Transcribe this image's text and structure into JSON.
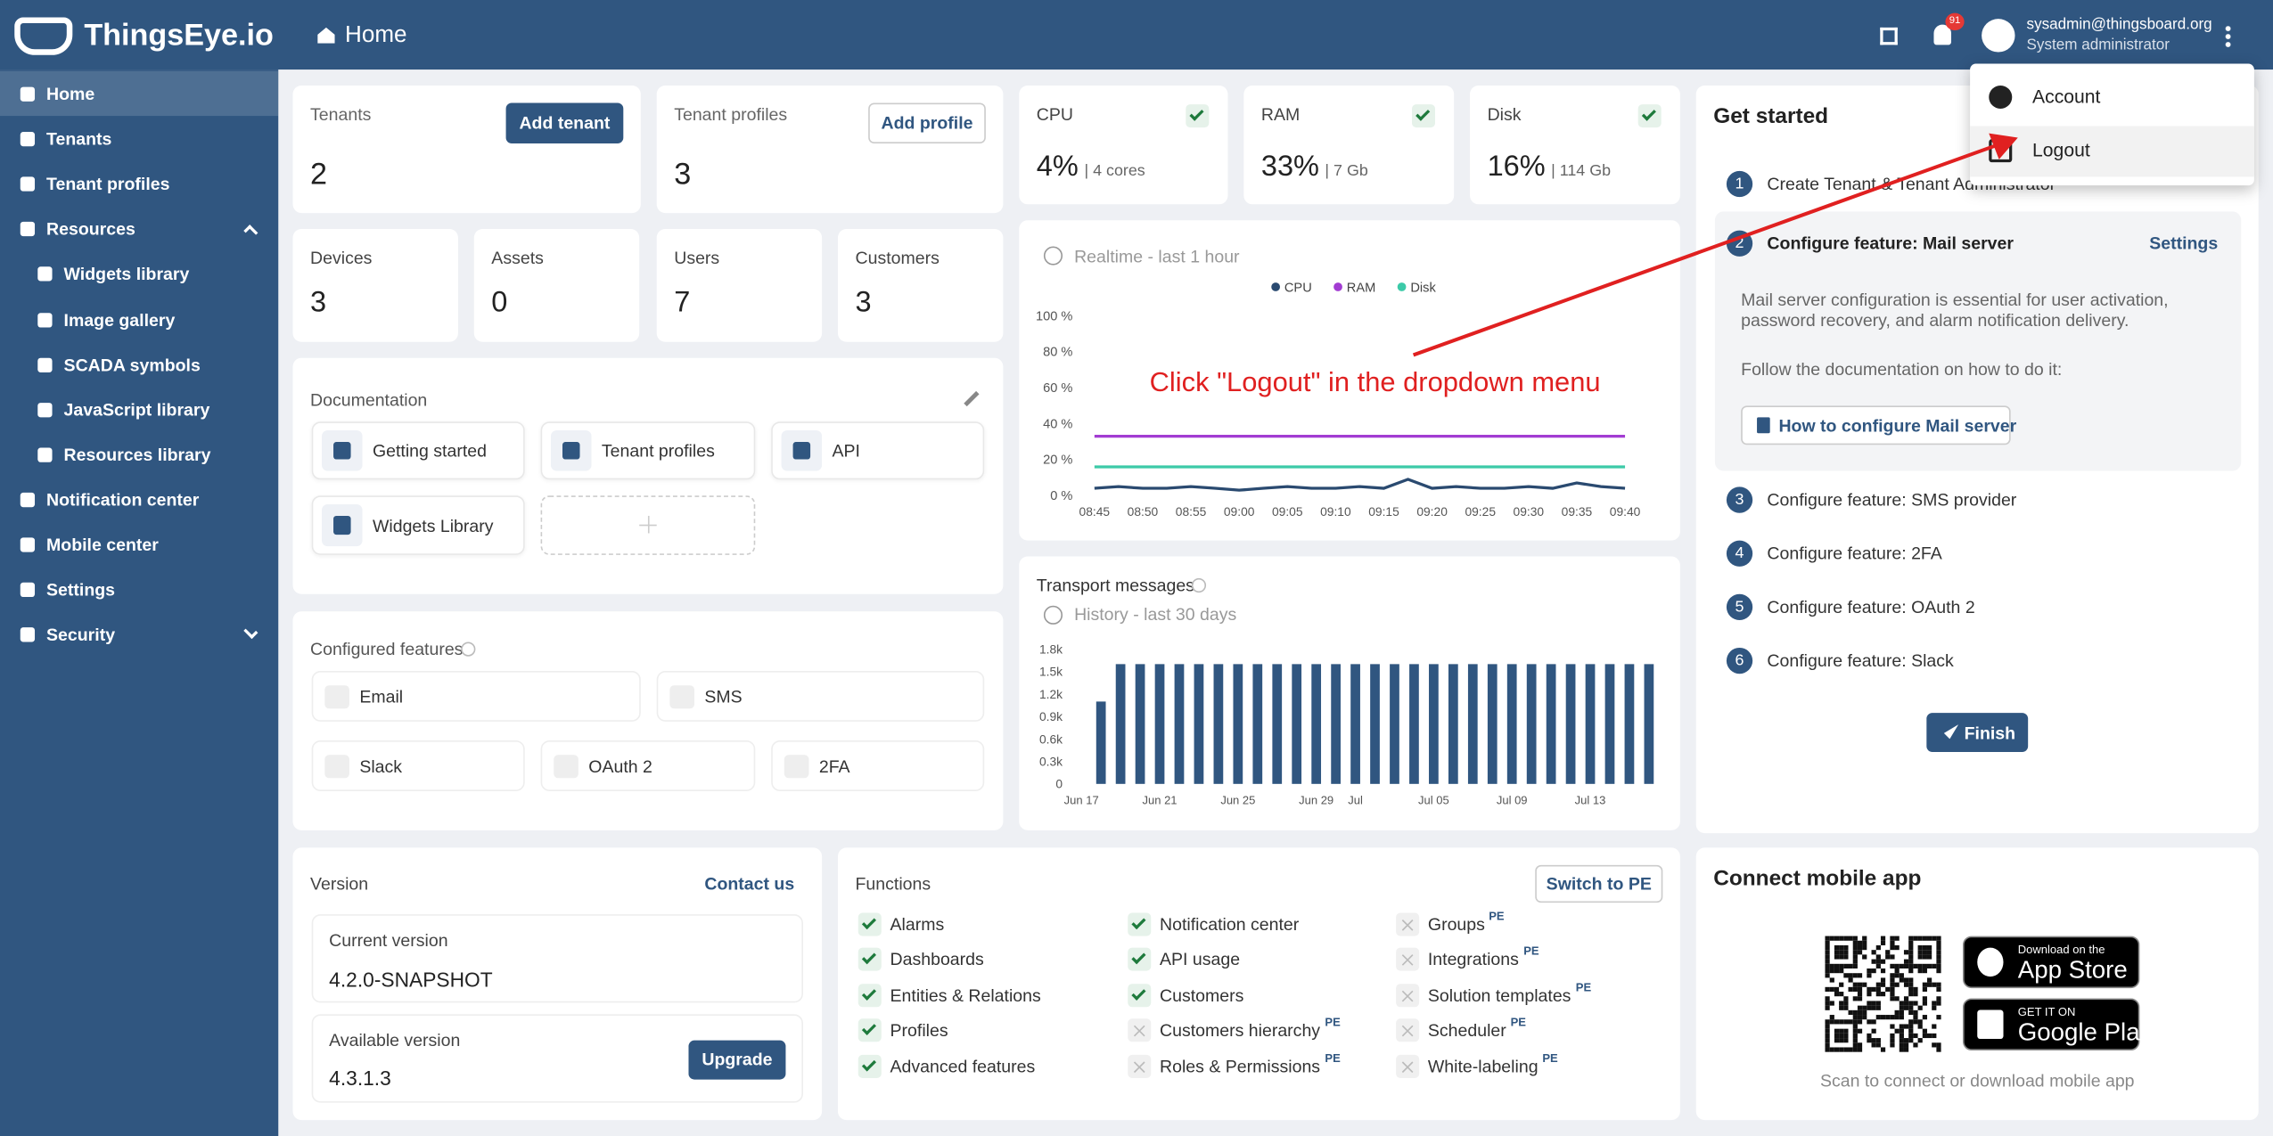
{
  "header": {
    "logo": "ThingsEye.io",
    "page": "Home",
    "notification_count": "91",
    "user_email": "sysadmin@thingsboard.org",
    "user_role": "System administrator"
  },
  "sidebar": {
    "items": [
      {
        "label": "Home"
      },
      {
        "label": "Tenants"
      },
      {
        "label": "Tenant profiles"
      },
      {
        "label": "Resources",
        "expanded": true,
        "children": [
          "Widgets library",
          "Image gallery",
          "SCADA symbols",
          "JavaScript library",
          "Resources library"
        ]
      },
      {
        "label": "Notification center"
      },
      {
        "label": "Mobile center"
      },
      {
        "label": "Settings"
      },
      {
        "label": "Security",
        "expanded": false
      }
    ]
  },
  "dropdown": {
    "items": [
      "Account",
      "Logout"
    ]
  },
  "annotation": "Click \"Logout\" in the dropdown menu",
  "tenants": {
    "label": "Tenants",
    "button": "Add tenant",
    "value": 2
  },
  "tenant_profiles": {
    "label": "Tenant profiles",
    "button": "Add profile",
    "value": 3
  },
  "counts": [
    {
      "label": "Devices",
      "value": 3
    },
    {
      "label": "Assets",
      "value": 0
    },
    {
      "label": "Users",
      "value": 7
    },
    {
      "label": "Customers",
      "value": 3
    }
  ],
  "documentation": {
    "title": "Documentation",
    "links": [
      "Getting started",
      "Tenant profiles",
      "API",
      "Widgets Library"
    ]
  },
  "configured_features": {
    "title": "Configured features",
    "items": [
      "Email",
      "SMS",
      "Slack",
      "OAuth 2",
      "2FA"
    ]
  },
  "system": [
    {
      "label": "CPU",
      "value": "4%",
      "detail": "| 4 cores"
    },
    {
      "label": "RAM",
      "value": "33%",
      "detail": "| 7 Gb"
    },
    {
      "label": "Disk",
      "value": "16%",
      "detail": "| 114 Gb"
    }
  ],
  "realtime_chart": {
    "type": "line",
    "title": "Realtime - last 1 hour",
    "categories": [
      "08:45",
      null,
      "08:50",
      null,
      "08:55",
      null,
      "09:00",
      null,
      "09:05",
      null,
      "09:10",
      null,
      "09:15",
      null,
      "09:20",
      null,
      "09:25",
      null,
      "09:30",
      null,
      "09:35",
      null,
      "09:40"
    ],
    "series": [
      {
        "name": "CPU",
        "color": "#2a4a70",
        "values": [
          4,
          5,
          4,
          4,
          5,
          4,
          3,
          4,
          5,
          4,
          4,
          5,
          4,
          9,
          4,
          5,
          4,
          4,
          5,
          4,
          7,
          5,
          4
        ]
      },
      {
        "name": "RAM",
        "color": "#a23cd2",
        "values": [
          33,
          33,
          33,
          33,
          33,
          33,
          33,
          33,
          33,
          33,
          33,
          33,
          33,
          33,
          33,
          33,
          33,
          33,
          33,
          33,
          33,
          33,
          33
        ]
      },
      {
        "name": "Disk",
        "color": "#3ccaa8",
        "values": [
          16,
          16,
          16,
          16,
          16,
          16,
          16,
          16,
          16,
          16,
          16,
          16,
          16,
          16,
          16,
          16,
          16,
          16,
          16,
          16,
          16,
          16,
          16
        ]
      }
    ],
    "ylim": [
      0,
      100
    ],
    "yticks": [
      {
        "value": 0,
        "label": "0 %"
      },
      {
        "value": 20,
        "label": "20 %"
      },
      {
        "value": 40,
        "label": "40 %"
      },
      {
        "value": 60,
        "label": "60 %"
      },
      {
        "value": 80,
        "label": "80 %"
      },
      {
        "value": 100,
        "label": "100 %"
      }
    ]
  },
  "transport_chart": {
    "type": "bar",
    "title": "Transport messages",
    "subtitle": "History - last 30 days",
    "categories": [
      "Jun 17",
      null,
      null,
      null,
      "Jun 21",
      null,
      null,
      null,
      "Jun 25",
      null,
      null,
      null,
      "Jun 29",
      null,
      "Jul",
      null,
      null,
      null,
      "Jul 05",
      null,
      null,
      null,
      "Jul 09",
      null,
      null,
      null,
      "Jul 13",
      null,
      null,
      null
    ],
    "values": [
      null,
      1100,
      1600,
      1600,
      1600,
      1600,
      1600,
      1600,
      1600,
      1600,
      1600,
      1600,
      1600,
      1600,
      1600,
      1600,
      1600,
      1600,
      1600,
      1600,
      1600,
      1600,
      1600,
      1600,
      1600,
      1600,
      1600,
      1600,
      1600,
      1600
    ],
    "color": "#305680",
    "ylim": [
      0,
      1800
    ],
    "yticks": [
      0,
      {
        "value": 300,
        "label": "0.3k"
      },
      {
        "value": 600,
        "label": "0.6k"
      },
      {
        "value": 900,
        "label": "0.9k"
      },
      {
        "value": 1200,
        "label": "1.2k"
      },
      {
        "value": 1500,
        "label": "1.5k"
      },
      {
        "value": 1800,
        "label": "1.8k"
      }
    ]
  },
  "get_started": {
    "title": "Get started",
    "steps": [
      {
        "number": "1",
        "label": "Create Tenant & Tenant Administrator"
      },
      {
        "number": "2",
        "label": "Configure feature: Mail server",
        "action": "Settings",
        "description": "Mail server configuration is essential for user activation, password recovery, and alarm notification delivery.",
        "follow": "Follow the documentation on how to do it:",
        "link": "How to configure Mail server"
      },
      {
        "number": "3",
        "label": "Configure feature: SMS provider"
      },
      {
        "number": "4",
        "label": "Configure feature: 2FA"
      },
      {
        "number": "5",
        "label": "Configure feature: OAuth 2"
      },
      {
        "number": "6",
        "label": "Configure feature: Slack"
      }
    ],
    "finish": "Finish"
  },
  "version": {
    "title": "Version",
    "contact": "Contact us",
    "current_label": "Current version",
    "current": "4.2.0-SNAPSHOT",
    "available_label": "Available version",
    "available": "4.3.1.3",
    "upgrade": "Upgrade"
  },
  "functions": {
    "title": "Functions",
    "button": "Switch to PE",
    "items": [
      {
        "label": "Alarms",
        "enabled": true
      },
      {
        "label": "Dashboards",
        "enabled": true
      },
      {
        "label": "Entities & Relations",
        "enabled": true
      },
      {
        "label": "Profiles",
        "enabled": true
      },
      {
        "label": "Advanced features",
        "enabled": true
      },
      {
        "label": "Notification center",
        "enabled": true
      },
      {
        "label": "API usage",
        "enabled": true
      },
      {
        "label": "Customers",
        "enabled": true
      },
      {
        "label": "Customers hierarchy",
        "enabled": false,
        "badge": "PE"
      },
      {
        "label": "Roles & Permissions",
        "enabled": false,
        "badge": "PE"
      },
      {
        "label": "Groups",
        "enabled": false,
        "badge": "PE"
      },
      {
        "label": "Integrations",
        "enabled": false,
        "badge": "PE"
      },
      {
        "label": "Solution templates",
        "enabled": false,
        "badge": "PE"
      },
      {
        "label": "Scheduler",
        "enabled": false,
        "badge": "PE"
      },
      {
        "label": "White-labeling",
        "enabled": false,
        "badge": "PE"
      }
    ]
  },
  "mobile": {
    "title": "Connect mobile app",
    "app_store_top": "Download on the",
    "app_store": "App Store",
    "google_top": "GET IT ON",
    "google": "Google Play",
    "caption": "Scan to connect or download mobile app"
  }
}
